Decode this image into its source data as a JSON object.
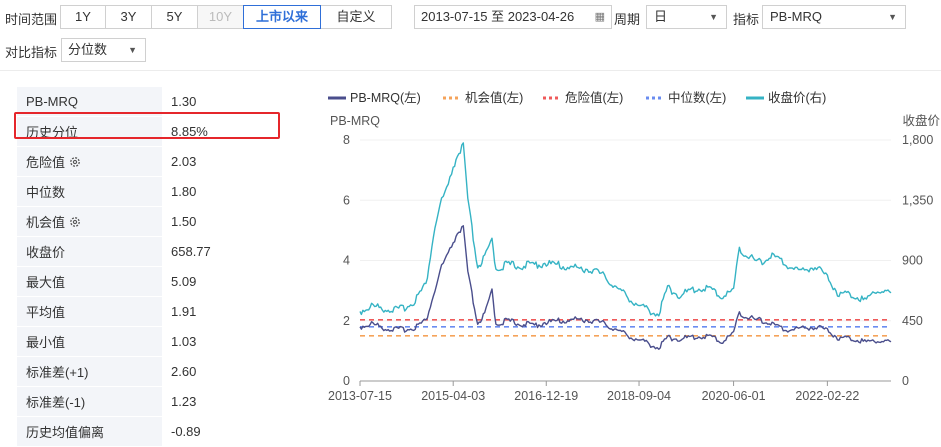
{
  "toolbar": {
    "time_range_label": "时间范围",
    "ranges": [
      "1Y",
      "3Y",
      "5Y",
      "10Y",
      "上市以来",
      "自定义"
    ],
    "active_range": "上市以来",
    "disabled_range": "10Y",
    "date_range": "2013-07-15 至 2023-04-26",
    "period_label": "周期",
    "period_value": "日",
    "indicator_label": "指标",
    "indicator_value": "PB-MRQ",
    "compare_label": "对比指标",
    "compare_value": "分位数"
  },
  "stats": [
    {
      "label": "PB-MRQ",
      "value": "1.30",
      "gear": false
    },
    {
      "label": "历史分位",
      "value": "8.85%",
      "gear": false
    },
    {
      "label": "危险值",
      "value": "2.03",
      "gear": true
    },
    {
      "label": "中位数",
      "value": "1.80",
      "gear": false
    },
    {
      "label": "机会值",
      "value": "1.50",
      "gear": true
    },
    {
      "label": "收盘价",
      "value": "658.77",
      "gear": false
    },
    {
      "label": "最大值",
      "value": "5.09",
      "gear": false
    },
    {
      "label": "平均值",
      "value": "1.91",
      "gear": false
    },
    {
      "label": "最小值",
      "value": "1.03",
      "gear": false
    },
    {
      "label": "标准差(+1)",
      "value": "2.60",
      "gear": false
    },
    {
      "label": "标准差(-1)",
      "value": "1.23",
      "gear": false
    },
    {
      "label": "历史均值偏离",
      "value": "-0.89",
      "gear": false
    }
  ],
  "chart_data": {
    "type": "line",
    "legend": [
      {
        "name": "PB-MRQ(左)",
        "style": "solid",
        "color": "#4a4e8c"
      },
      {
        "name": "机会值(左)",
        "style": "dotted",
        "color": "#f5a35a"
      },
      {
        "name": "危险值(左)",
        "style": "dotted",
        "color": "#ef5a5a"
      },
      {
        "name": "中位数(左)",
        "style": "dotted",
        "color": "#6a8cf0"
      },
      {
        "name": "收盘价(右)",
        "style": "solid",
        "color": "#35b3c4"
      }
    ],
    "ylabel_left": "PB-MRQ",
    "ylabel_right": "收盘价",
    "left_ticks": [
      "8",
      "6",
      "4",
      "2",
      "0"
    ],
    "right_ticks": [
      "1,800",
      "1,350",
      "900",
      "450",
      "0"
    ],
    "ylim_left": [
      0,
      8
    ],
    "ylim_right": [
      0,
      1800
    ],
    "x_ticks": [
      "2013-07-15",
      "2015-04-03",
      "2016-12-19",
      "2018-09-04",
      "2020-06-01",
      "2022-02-22"
    ],
    "x_start": "2013-07-15",
    "x_end": "2023-04-26",
    "lines": {
      "opportunity": 1.5,
      "danger": 2.03,
      "median": 1.8
    },
    "series": [
      {
        "name": "PB-MRQ(左)",
        "points": [
          [
            "2013-07-15",
            1.8
          ],
          [
            "2013-10-01",
            1.9
          ],
          [
            "2014-01-01",
            1.75
          ],
          [
            "2014-04-01",
            1.7
          ],
          [
            "2014-07-01",
            1.75
          ],
          [
            "2014-10-01",
            2.0
          ],
          [
            "2014-12-01",
            3.0
          ],
          [
            "2015-01-15",
            3.8
          ],
          [
            "2015-03-01",
            4.2
          ],
          [
            "2015-04-03",
            4.6
          ],
          [
            "2015-05-01",
            4.9
          ],
          [
            "2015-06-10",
            5.09
          ],
          [
            "2015-07-10",
            3.6
          ],
          [
            "2015-08-25",
            2.4
          ],
          [
            "2015-09-15",
            1.9
          ],
          [
            "2015-11-01",
            2.2
          ],
          [
            "2015-12-20",
            3.0
          ],
          [
            "2016-01-15",
            1.9
          ],
          [
            "2016-04-01",
            2.0
          ],
          [
            "2016-07-01",
            1.9
          ],
          [
            "2016-10-01",
            1.85
          ],
          [
            "2016-12-19",
            1.95
          ],
          [
            "2017-04-01",
            2.0
          ],
          [
            "2017-08-01",
            2.05
          ],
          [
            "2017-11-01",
            2.0
          ],
          [
            "2018-01-15",
            1.9
          ],
          [
            "2018-04-01",
            1.7
          ],
          [
            "2018-07-01",
            1.5
          ],
          [
            "2018-09-04",
            1.35
          ],
          [
            "2018-12-01",
            1.2
          ],
          [
            "2019-01-15",
            1.1
          ],
          [
            "2019-03-15",
            1.45
          ],
          [
            "2019-06-01",
            1.4
          ],
          [
            "2019-09-01",
            1.45
          ],
          [
            "2019-12-01",
            1.5
          ],
          [
            "2020-02-01",
            1.4
          ],
          [
            "2020-03-20",
            1.3
          ],
          [
            "2020-06-01",
            1.6
          ],
          [
            "2020-07-10",
            2.3
          ],
          [
            "2020-09-01",
            2.1
          ],
          [
            "2020-12-01",
            2.0
          ],
          [
            "2021-02-15",
            1.9
          ],
          [
            "2021-05-01",
            1.7
          ],
          [
            "2021-09-01",
            1.75
          ],
          [
            "2021-12-01",
            1.8
          ],
          [
            "2022-02-22",
            1.7
          ],
          [
            "2022-05-01",
            1.45
          ],
          [
            "2022-09-01",
            1.4
          ],
          [
            "2022-11-01",
            1.3
          ],
          [
            "2023-01-15",
            1.35
          ],
          [
            "2023-04-26",
            1.3
          ]
        ]
      },
      {
        "name": "收盘价(右)",
        "points": [
          [
            "2013-07-15",
            520
          ],
          [
            "2013-10-01",
            560
          ],
          [
            "2014-01-01",
            540
          ],
          [
            "2014-04-01",
            530
          ],
          [
            "2014-07-01",
            580
          ],
          [
            "2014-10-01",
            720
          ],
          [
            "2014-12-01",
            1150
          ],
          [
            "2015-01-15",
            1350
          ],
          [
            "2015-03-01",
            1450
          ],
          [
            "2015-04-03",
            1600
          ],
          [
            "2015-05-01",
            1680
          ],
          [
            "2015-06-10",
            1760
          ],
          [
            "2015-07-10",
            1350
          ],
          [
            "2015-08-25",
            1000
          ],
          [
            "2015-09-15",
            850
          ],
          [
            "2015-11-01",
            920
          ],
          [
            "2015-12-20",
            1050
          ],
          [
            "2016-01-15",
            840
          ],
          [
            "2016-04-01",
            870
          ],
          [
            "2016-07-01",
            860
          ],
          [
            "2016-10-01",
            870
          ],
          [
            "2016-12-19",
            880
          ],
          [
            "2017-04-01",
            860
          ],
          [
            "2017-08-01",
            840
          ],
          [
            "2017-11-01",
            830
          ],
          [
            "2018-01-15",
            780
          ],
          [
            "2018-04-01",
            700
          ],
          [
            "2018-07-01",
            620
          ],
          [
            "2018-09-04",
            560
          ],
          [
            "2018-12-01",
            520
          ],
          [
            "2019-01-15",
            500
          ],
          [
            "2019-03-15",
            700
          ],
          [
            "2019-06-01",
            640
          ],
          [
            "2019-09-01",
            680
          ],
          [
            "2019-12-01",
            700
          ],
          [
            "2020-02-01",
            660
          ],
          [
            "2020-03-20",
            630
          ],
          [
            "2020-06-01",
            680
          ],
          [
            "2020-07-10",
            1000
          ],
          [
            "2020-09-01",
            930
          ],
          [
            "2020-12-01",
            880
          ],
          [
            "2021-02-15",
            940
          ],
          [
            "2021-05-01",
            880
          ],
          [
            "2021-09-01",
            820
          ],
          [
            "2021-12-01",
            860
          ],
          [
            "2022-02-22",
            780
          ],
          [
            "2022-05-01",
            660
          ],
          [
            "2022-09-01",
            640
          ],
          [
            "2022-11-01",
            600
          ],
          [
            "2023-01-15",
            680
          ],
          [
            "2023-04-26",
            658.77
          ]
        ]
      }
    ]
  }
}
